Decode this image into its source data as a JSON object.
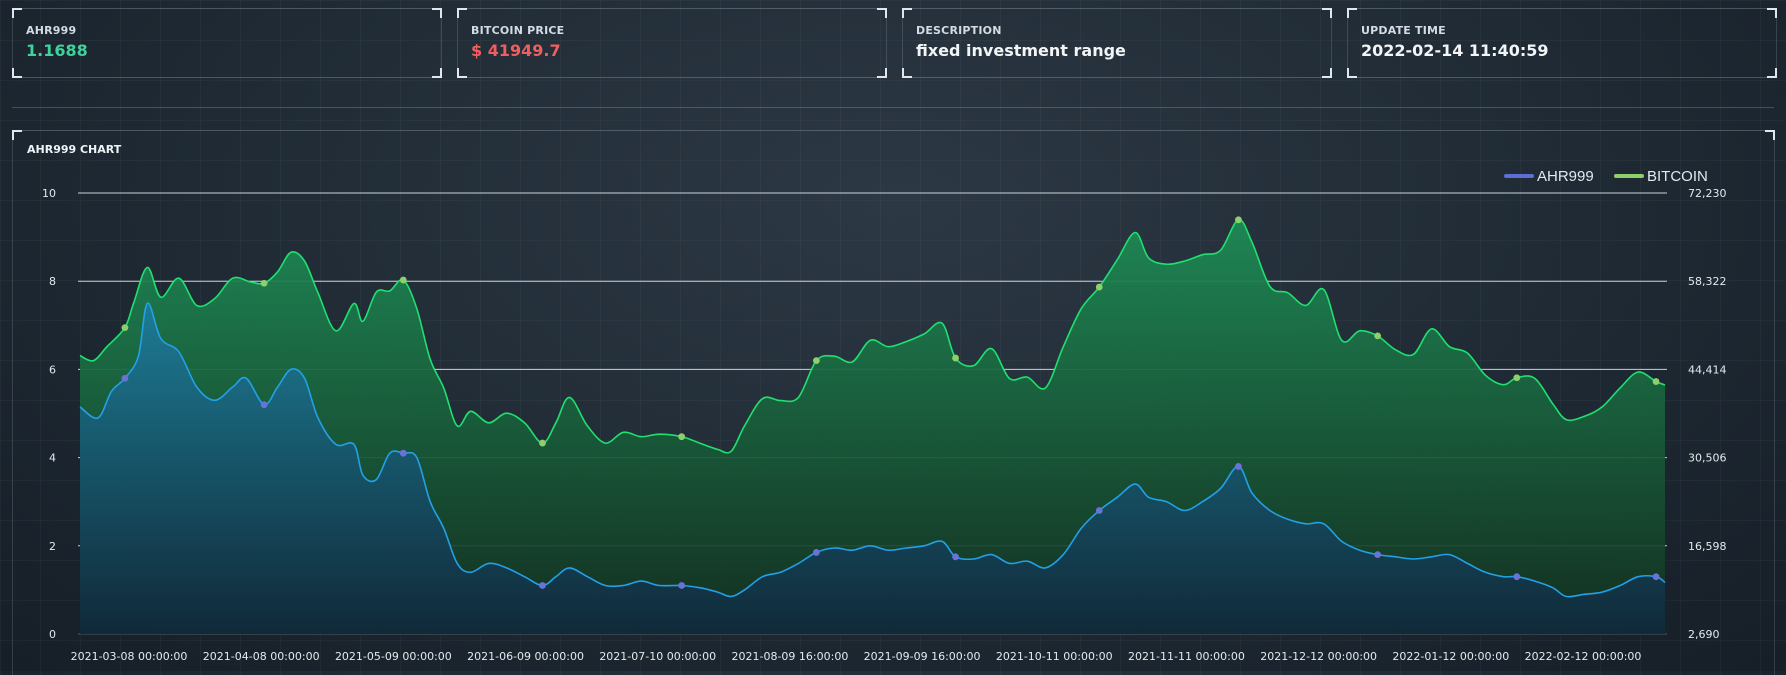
{
  "cards": [
    {
      "label": "AHR999",
      "value": "1.1688",
      "color": "#3fd29a"
    },
    {
      "label": "BITCOIN PRICE",
      "value": "$ 41949.7",
      "color": "#ef5f60"
    },
    {
      "label": "DESCRIPTION",
      "value": "fixed investment range",
      "color": "#f2f5f7"
    },
    {
      "label": "UPDATE TIME",
      "value": "2022-02-14 11:40:59",
      "color": "#f2f5f7"
    }
  ],
  "chart_data": {
    "type": "area",
    "title": "AHR999 CHART",
    "x_tick_labels": [
      "2021-03-08 00:00:00",
      "2021-04-08 00:00:00",
      "2021-05-09 00:00:00",
      "2021-06-09 00:00:00",
      "2021-07-10 00:00:00",
      "2021-08-09 16:00:00",
      "2021-09-09 16:00:00",
      "2021-10-11 00:00:00",
      "2021-11-11 00:00:00",
      "2021-12-12 00:00:00",
      "2022-01-12 00:00:00",
      "2022-02-12 00:00:00"
    ],
    "x_range": [
      "2021-02-26",
      "2022-02-14"
    ],
    "left_axis": {
      "ticks": [
        "0",
        "2",
        "4",
        "6",
        "8",
        "10"
      ],
      "ylim": [
        0,
        10
      ]
    },
    "right_axis": {
      "ticks": [
        "2,690",
        "16,598",
        "30,506",
        "44,414",
        "58,322",
        "72,230"
      ],
      "ylim": [
        2690,
        72230
      ]
    },
    "grid": true,
    "legend_position": "top-right",
    "series": [
      {
        "name": "AHR999",
        "axis": "left",
        "line_color": "#22a0e8",
        "legend_color": "#5b6fd6",
        "marker_color": "#6a72d8",
        "points": [
          [
            "2021-02-26",
            5.15
          ],
          [
            "2021-03-02",
            4.9
          ],
          [
            "2021-03-05",
            5.5
          ],
          [
            "2021-03-08",
            5.8
          ],
          [
            "2021-03-11",
            6.3
          ],
          [
            "2021-03-13",
            7.5
          ],
          [
            "2021-03-16",
            6.7
          ],
          [
            "2021-03-20",
            6.4
          ],
          [
            "2021-03-24",
            5.6
          ],
          [
            "2021-03-28",
            5.3
          ],
          [
            "2021-04-01",
            5.6
          ],
          [
            "2021-04-04",
            5.8
          ],
          [
            "2021-04-08",
            5.2
          ],
          [
            "2021-04-11",
            5.6
          ],
          [
            "2021-04-14",
            6.0
          ],
          [
            "2021-04-17",
            5.8
          ],
          [
            "2021-04-20",
            4.9
          ],
          [
            "2021-04-24",
            4.3
          ],
          [
            "2021-04-28",
            4.3
          ],
          [
            "2021-04-30",
            3.6
          ],
          [
            "2021-05-03",
            3.5
          ],
          [
            "2021-05-06",
            4.1
          ],
          [
            "2021-05-09",
            4.1
          ],
          [
            "2021-05-12",
            4.0
          ],
          [
            "2021-05-15",
            3.0
          ],
          [
            "2021-05-18",
            2.4
          ],
          [
            "2021-05-21",
            1.6
          ],
          [
            "2021-05-24",
            1.4
          ],
          [
            "2021-05-28",
            1.6
          ],
          [
            "2021-06-01",
            1.5
          ],
          [
            "2021-06-05",
            1.3
          ],
          [
            "2021-06-09",
            1.1
          ],
          [
            "2021-06-12",
            1.3
          ],
          [
            "2021-06-15",
            1.5
          ],
          [
            "2021-06-19",
            1.3
          ],
          [
            "2021-06-23",
            1.1
          ],
          [
            "2021-06-27",
            1.1
          ],
          [
            "2021-07-01",
            1.2
          ],
          [
            "2021-07-05",
            1.1
          ],
          [
            "2021-07-10",
            1.1
          ],
          [
            "2021-07-14",
            1.05
          ],
          [
            "2021-07-18",
            0.95
          ],
          [
            "2021-07-21",
            0.85
          ],
          [
            "2021-07-24",
            1.0
          ],
          [
            "2021-07-28",
            1.3
          ],
          [
            "2021-08-01",
            1.4
          ],
          [
            "2021-08-05",
            1.6
          ],
          [
            "2021-08-09",
            1.85
          ],
          [
            "2021-08-13",
            1.95
          ],
          [
            "2021-08-17",
            1.9
          ],
          [
            "2021-08-21",
            2.0
          ],
          [
            "2021-08-25",
            1.9
          ],
          [
            "2021-08-29",
            1.95
          ],
          [
            "2021-09-02",
            2.0
          ],
          [
            "2021-09-06",
            2.1
          ],
          [
            "2021-09-09",
            1.75
          ],
          [
            "2021-09-13",
            1.7
          ],
          [
            "2021-09-17",
            1.8
          ],
          [
            "2021-09-21",
            1.6
          ],
          [
            "2021-09-25",
            1.65
          ],
          [
            "2021-09-29",
            1.5
          ],
          [
            "2021-10-03",
            1.8
          ],
          [
            "2021-10-07",
            2.4
          ],
          [
            "2021-10-11",
            2.8
          ],
          [
            "2021-10-15",
            3.1
          ],
          [
            "2021-10-19",
            3.4
          ],
          [
            "2021-10-22",
            3.1
          ],
          [
            "2021-10-26",
            3.0
          ],
          [
            "2021-10-30",
            2.8
          ],
          [
            "2021-11-03",
            3.0
          ],
          [
            "2021-11-07",
            3.3
          ],
          [
            "2021-11-11",
            3.8
          ],
          [
            "2021-11-14",
            3.2
          ],
          [
            "2021-11-18",
            2.8
          ],
          [
            "2021-11-22",
            2.6
          ],
          [
            "2021-11-26",
            2.5
          ],
          [
            "2021-11-30",
            2.5
          ],
          [
            "2021-12-04",
            2.1
          ],
          [
            "2021-12-08",
            1.9
          ],
          [
            "2021-12-12",
            1.8
          ],
          [
            "2021-12-16",
            1.75
          ],
          [
            "2021-12-20",
            1.7
          ],
          [
            "2021-12-24",
            1.75
          ],
          [
            "2021-12-28",
            1.8
          ],
          [
            "2022-01-01",
            1.6
          ],
          [
            "2022-01-05",
            1.4
          ],
          [
            "2022-01-09",
            1.3
          ],
          [
            "2022-01-12",
            1.3
          ],
          [
            "2022-01-16",
            1.2
          ],
          [
            "2022-01-20",
            1.05
          ],
          [
            "2022-01-23",
            0.85
          ],
          [
            "2022-01-27",
            0.9
          ],
          [
            "2022-01-31",
            0.95
          ],
          [
            "2022-02-04",
            1.1
          ],
          [
            "2022-02-08",
            1.3
          ],
          [
            "2022-02-12",
            1.3
          ],
          [
            "2022-02-14",
            1.17
          ]
        ],
        "markers": [
          [
            "2021-03-08",
            5.8
          ],
          [
            "2021-04-08",
            5.2
          ],
          [
            "2021-05-09",
            4.1
          ],
          [
            "2021-06-09",
            1.1
          ],
          [
            "2021-07-10",
            1.1
          ],
          [
            "2021-08-09",
            1.85
          ],
          [
            "2021-09-09",
            1.75
          ],
          [
            "2021-10-11",
            2.8
          ],
          [
            "2021-11-11",
            3.8
          ],
          [
            "2021-12-12",
            1.8
          ],
          [
            "2022-01-12",
            1.3
          ],
          [
            "2022-02-12",
            1.3
          ]
        ]
      },
      {
        "name": "BITCOIN",
        "axis": "right",
        "line_color": "#1fe070",
        "legend_color": "#8dcf6a",
        "marker_color": "#8dcf6a",
        "points": [
          [
            "2021-02-26",
            46600
          ],
          [
            "2021-03-01",
            45800
          ],
          [
            "2021-03-04",
            48000
          ],
          [
            "2021-03-08",
            51000
          ],
          [
            "2021-03-10",
            55000
          ],
          [
            "2021-03-13",
            60500
          ],
          [
            "2021-03-16",
            55800
          ],
          [
            "2021-03-20",
            58800
          ],
          [
            "2021-03-24",
            54500
          ],
          [
            "2021-03-28",
            55600
          ],
          [
            "2021-04-01",
            58800
          ],
          [
            "2021-04-05",
            58200
          ],
          [
            "2021-04-08",
            58000
          ],
          [
            "2021-04-11",
            59800
          ],
          [
            "2021-04-14",
            62900
          ],
          [
            "2021-04-17",
            61500
          ],
          [
            "2021-04-20",
            56500
          ],
          [
            "2021-04-24",
            50500
          ],
          [
            "2021-04-28",
            54800
          ],
          [
            "2021-04-30",
            52000
          ],
          [
            "2021-05-03",
            56600
          ],
          [
            "2021-05-06",
            56800
          ],
          [
            "2021-05-09",
            58500
          ],
          [
            "2021-05-12",
            54000
          ],
          [
            "2021-05-15",
            46000
          ],
          [
            "2021-05-18",
            41500
          ],
          [
            "2021-05-21",
            35500
          ],
          [
            "2021-05-24",
            37800
          ],
          [
            "2021-05-28",
            36000
          ],
          [
            "2021-06-01",
            37500
          ],
          [
            "2021-06-05",
            36000
          ],
          [
            "2021-06-09",
            32800
          ],
          [
            "2021-06-12",
            36000
          ],
          [
            "2021-06-15",
            40000
          ],
          [
            "2021-06-19",
            35500
          ],
          [
            "2021-06-23",
            32800
          ],
          [
            "2021-06-27",
            34500
          ],
          [
            "2021-07-01",
            33800
          ],
          [
            "2021-07-05",
            34200
          ],
          [
            "2021-07-10",
            33800
          ],
          [
            "2021-07-14",
            32800
          ],
          [
            "2021-07-18",
            31800
          ],
          [
            "2021-07-21",
            31500
          ],
          [
            "2021-07-24",
            35500
          ],
          [
            "2021-07-28",
            39800
          ],
          [
            "2021-08-01",
            39500
          ],
          [
            "2021-08-05",
            40000
          ],
          [
            "2021-08-09",
            45800
          ],
          [
            "2021-08-13",
            46500
          ],
          [
            "2021-08-17",
            45600
          ],
          [
            "2021-08-21",
            49000
          ],
          [
            "2021-08-25",
            48000
          ],
          [
            "2021-08-29",
            48800
          ],
          [
            "2021-09-02",
            50000
          ],
          [
            "2021-09-06",
            51700
          ],
          [
            "2021-09-09",
            46200
          ],
          [
            "2021-09-13",
            45000
          ],
          [
            "2021-09-17",
            47700
          ],
          [
            "2021-09-21",
            43000
          ],
          [
            "2021-09-25",
            43200
          ],
          [
            "2021-09-29",
            41500
          ],
          [
            "2021-10-03",
            48000
          ],
          [
            "2021-10-07",
            54000
          ],
          [
            "2021-10-11",
            57400
          ],
          [
            "2021-10-15",
            61700
          ],
          [
            "2021-10-19",
            66000
          ],
          [
            "2021-10-22",
            62000
          ],
          [
            "2021-10-26",
            61000
          ],
          [
            "2021-10-30",
            61500
          ],
          [
            "2021-11-03",
            62500
          ],
          [
            "2021-11-07",
            63200
          ],
          [
            "2021-11-11",
            68000
          ],
          [
            "2021-11-14",
            64500
          ],
          [
            "2021-11-18",
            57500
          ],
          [
            "2021-11-22",
            56500
          ],
          [
            "2021-11-26",
            54500
          ],
          [
            "2021-11-30",
            57000
          ],
          [
            "2021-12-04",
            49000
          ],
          [
            "2021-12-08",
            50500
          ],
          [
            "2021-12-12",
            49700
          ],
          [
            "2021-12-16",
            47500
          ],
          [
            "2021-12-20",
            46800
          ],
          [
            "2021-12-24",
            50800
          ],
          [
            "2021-12-28",
            48000
          ],
          [
            "2022-01-01",
            47000
          ],
          [
            "2022-01-05",
            43500
          ],
          [
            "2022-01-09",
            42000
          ],
          [
            "2022-01-12",
            43100
          ],
          [
            "2022-01-16",
            43000
          ],
          [
            "2022-01-20",
            39000
          ],
          [
            "2022-01-23",
            36500
          ],
          [
            "2022-01-27",
            37000
          ],
          [
            "2022-01-31",
            38500
          ],
          [
            "2022-02-04",
            41500
          ],
          [
            "2022-02-08",
            44000
          ],
          [
            "2022-02-12",
            42500
          ],
          [
            "2022-02-14",
            41949.7
          ]
        ],
        "markers": [
          [
            "2021-03-08",
            51000
          ],
          [
            "2021-04-08",
            58000
          ],
          [
            "2021-05-09",
            58500
          ],
          [
            "2021-06-09",
            32800
          ],
          [
            "2021-07-10",
            33800
          ],
          [
            "2021-08-09",
            45800
          ],
          [
            "2021-09-09",
            46200
          ],
          [
            "2021-10-11",
            57400
          ],
          [
            "2021-11-11",
            68000
          ],
          [
            "2021-12-12",
            49700
          ],
          [
            "2022-01-12",
            43100
          ],
          [
            "2022-02-12",
            42500
          ]
        ]
      }
    ]
  }
}
